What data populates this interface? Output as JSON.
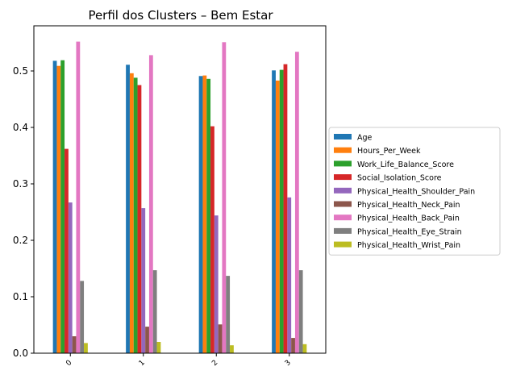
{
  "chart_data": {
    "type": "bar",
    "title": "Perfil dos Clusters – Bem Estar",
    "xlabel": "",
    "ylabel": "",
    "categories": [
      "0",
      "1",
      "2",
      "3"
    ],
    "yticks": [
      "0.0",
      "0.1",
      "0.2",
      "0.3",
      "0.4",
      "0.5"
    ],
    "ylim": [
      0,
      0.58
    ],
    "grid": false,
    "legend_position": "right",
    "series": [
      {
        "name": "Age",
        "color": "#1f77b4",
        "values": [
          0.518,
          0.511,
          0.491,
          0.501
        ]
      },
      {
        "name": "Hours_Per_Week",
        "color": "#ff7f0e",
        "values": [
          0.509,
          0.496,
          0.492,
          0.483
        ]
      },
      {
        "name": "Work_Life_Balance_Score",
        "color": "#2ca02c",
        "values": [
          0.519,
          0.488,
          0.486,
          0.502
        ]
      },
      {
        "name": "Social_Isolation_Score",
        "color": "#d62728",
        "values": [
          0.362,
          0.475,
          0.402,
          0.512
        ]
      },
      {
        "name": "Physical_Health_Shoulder_Pain",
        "color": "#9467bd",
        "values": [
          0.267,
          0.257,
          0.244,
          0.276
        ]
      },
      {
        "name": "Physical_Health_Neck_Pain",
        "color": "#8c564b",
        "values": [
          0.03,
          0.047,
          0.051,
          0.027
        ]
      },
      {
        "name": "Physical_Health_Back_Pain",
        "color": "#e377c2",
        "values": [
          0.552,
          0.528,
          0.551,
          0.534
        ]
      },
      {
        "name": "Physical_Health_Eye_Strain",
        "color": "#7f7f7f",
        "values": [
          0.128,
          0.147,
          0.137,
          0.147
        ]
      },
      {
        "name": "Physical_Health_Wrist_Pain",
        "color": "#bcbd22",
        "values": [
          0.018,
          0.02,
          0.014,
          0.016
        ]
      }
    ]
  }
}
